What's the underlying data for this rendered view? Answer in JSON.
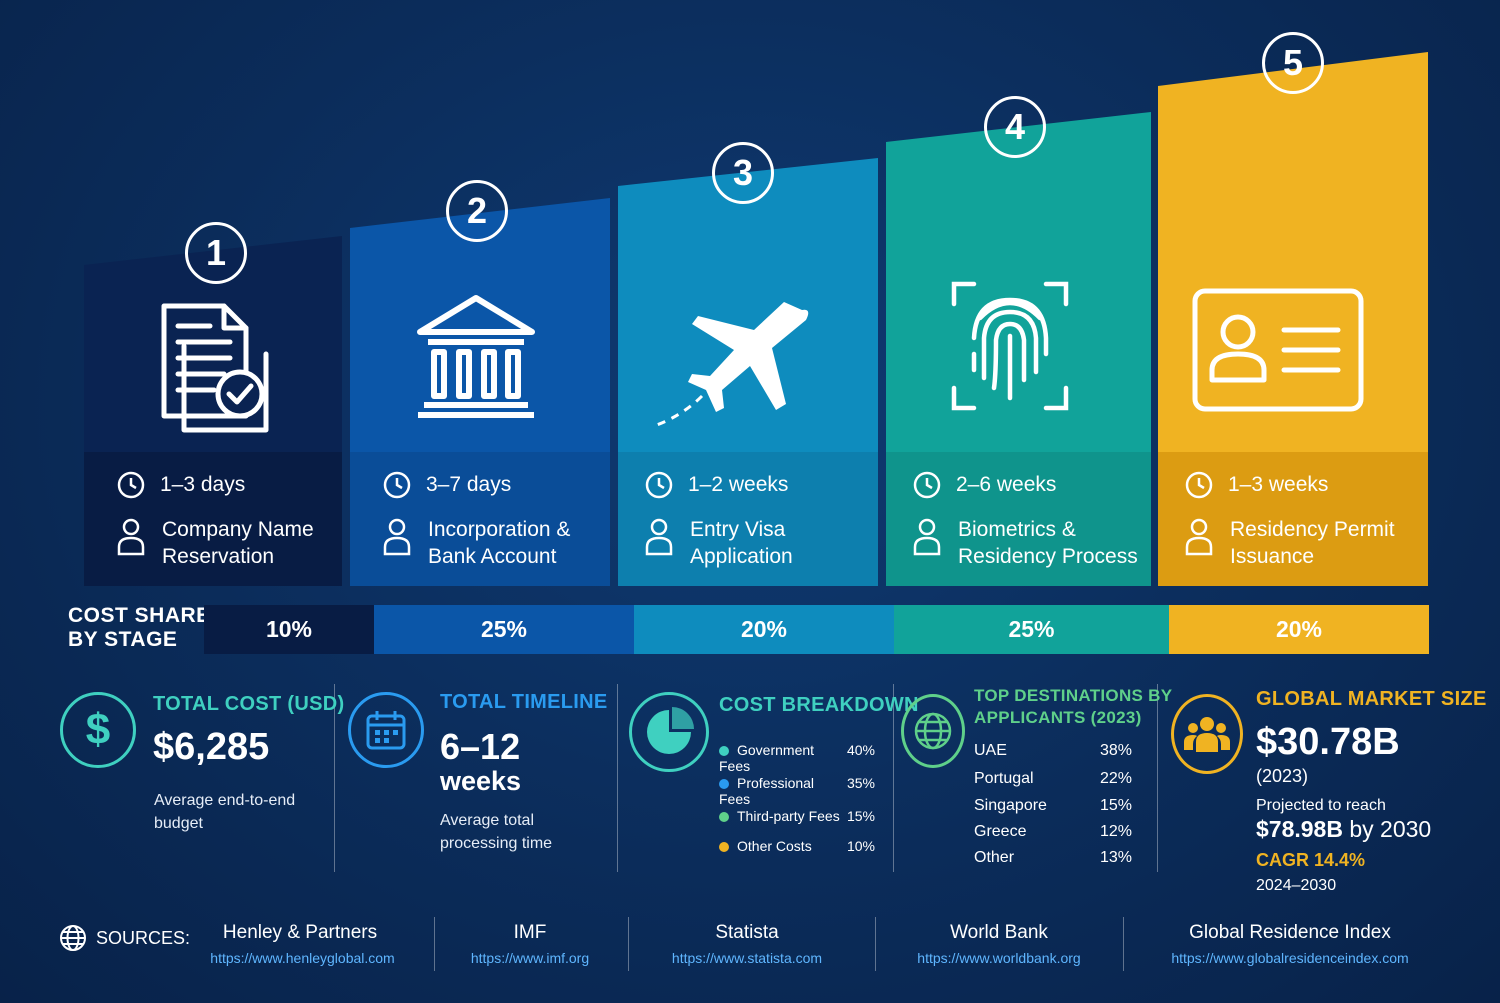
{
  "stages": [
    {
      "number": "1",
      "icon": "document-check-icon",
      "time": "1–3 days",
      "name_line1": "Company Name",
      "name_line2": "Reservation",
      "color": "#0a2352"
    },
    {
      "number": "2",
      "icon": "bank-icon",
      "time": "3–7 days",
      "name_line1": "Incorporation &",
      "name_line2": "Bank Account",
      "color": "#0b56a8"
    },
    {
      "number": "3",
      "icon": "airplane-icon",
      "time": "1–2 weeks",
      "name_line1": "Entry Visa",
      "name_line2": "Application",
      "color": "#0e8cbe"
    },
    {
      "number": "4",
      "icon": "fingerprint-icon",
      "time": "2–6 weeks",
      "name_line1": "Biometrics &",
      "name_line2": "Residency Process",
      "color": "#11a39a"
    },
    {
      "number": "5",
      "icon": "id-card-icon",
      "time": "1–3 weeks",
      "name_line1": "Residency Permit",
      "name_line2": "Issuance",
      "color": "#f0b322"
    }
  ],
  "cost_share": {
    "label_line1": "COST SHARE",
    "label_line2": "BY STAGE",
    "values": [
      "10%",
      "25%",
      "20%",
      "25%",
      "20%"
    ],
    "colors": [
      "#0a2352",
      "#0b56a8",
      "#0e8cbe",
      "#11a39a",
      "#f0b322"
    ]
  },
  "total_cost": {
    "title": "TOTAL COST (USD)",
    "value": "$6,285",
    "desc_line1": "Average end-to-end",
    "desc_line2": "budget",
    "color": "#3fd0c0"
  },
  "total_timeline": {
    "title": "TOTAL TIMELINE",
    "value_line1": "6–12",
    "value_line2": "weeks",
    "desc_line1": "Average total",
    "desc_line2": "processing time",
    "color": "#2a9bf0"
  },
  "cost_breakdown": {
    "title": "COST BREAKDOWN",
    "color": "#3fd0c0",
    "items": [
      {
        "label": "Government Fees",
        "value": "40%",
        "color": "#3fd0c0"
      },
      {
        "label": "Professional Fees",
        "value": "35%",
        "color": "#2a9bf0"
      },
      {
        "label": "Third-party Fees",
        "value": "15%",
        "color": "#5fd08a"
      },
      {
        "label": "Other Costs",
        "value": "10%",
        "color": "#f0b322"
      }
    ]
  },
  "top_destinations": {
    "title_line1": "TOP DESTINATIONS BY",
    "title_line2": "APPLICANTS (2023)",
    "color": "#5fd08a",
    "items": [
      {
        "country": "UAE",
        "value": "38%"
      },
      {
        "country": "Portugal",
        "value": "22%"
      },
      {
        "country": "Singapore",
        "value": "15%"
      },
      {
        "country": "Greece",
        "value": "12%"
      },
      {
        "country": "Other",
        "value": "13%"
      }
    ]
  },
  "global_market": {
    "title": "GLOBAL MARKET SIZE",
    "value": "$30.78B",
    "year": "(2023)",
    "projected_label": "Projected to reach",
    "projected_value": "$78.98B",
    "projected_suffix": "by 2030",
    "cagr": "CAGR 14.4%",
    "period": "2024–2030",
    "color": "#f0b322"
  },
  "sources": {
    "label": "SOURCES:",
    "items": [
      {
        "name": "Henley & Partners",
        "url": "https://www.henleyglobal.com"
      },
      {
        "name": "IMF",
        "url": "https://www.imf.org"
      },
      {
        "name": "Statista",
        "url": "https://www.statista.com"
      },
      {
        "name": "World Bank",
        "url": "https://www.worldbank.org"
      },
      {
        "name": "Global Residence Index",
        "url": "https://www.globalresidenceindex.com"
      }
    ]
  }
}
